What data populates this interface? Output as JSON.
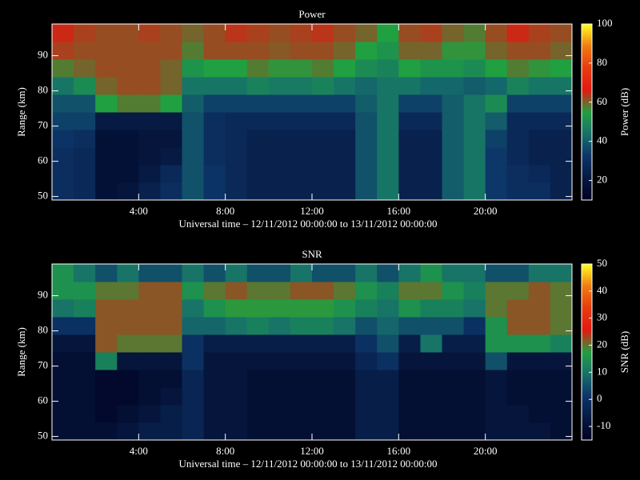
{
  "chart_data": [
    {
      "type": "heatmap",
      "title": "Power",
      "xlabel": "Universal time – 12/11/2012 00:00:00 to 13/11/2012 00:00:00",
      "ylabel": "Range (km)",
      "colorbar_label": "Power (dB)",
      "xlim": [
        0,
        24
      ],
      "ylim": [
        49,
        99
      ],
      "xticks": [
        {
          "value": 4,
          "label": "4:00"
        },
        {
          "value": 8,
          "label": "8:00"
        },
        {
          "value": 12,
          "label": "12:00"
        },
        {
          "value": 16,
          "label": "16:00"
        },
        {
          "value": 20,
          "label": "20:00"
        }
      ],
      "yticks": [
        50,
        60,
        70,
        80,
        90
      ],
      "zlim": [
        10,
        100
      ],
      "zticks": [
        20,
        40,
        60,
        80,
        100
      ],
      "colormap": [
        "#000020",
        "#061840",
        "#0c3468",
        "#16706a",
        "#20a040",
        "#e01a10",
        "#e83a10",
        "#f07a10",
        "#ffff20"
      ],
      "x": [
        0.5,
        1.5,
        2.5,
        3.5,
        4.5,
        5.5,
        6.5,
        7.5,
        8.5,
        9.5,
        10.5,
        11.5,
        12.5,
        13.5,
        14.5,
        15.5,
        16.5,
        17.5,
        18.5,
        19.5,
        20.5,
        21.5,
        22.5,
        23.5
      ],
      "y": [
        51.5,
        56.5,
        61.5,
        66.5,
        71.5,
        76.5,
        81.5,
        86.5,
        91.5,
        96.5
      ],
      "values": [
        [
          30,
          28,
          18,
          20,
          25,
          30,
          38,
          32,
          28,
          25,
          25,
          25,
          25,
          25,
          38,
          45,
          25,
          25,
          40,
          45,
          33,
          30,
          30,
          25
        ],
        [
          30,
          28,
          18,
          18,
          22,
          28,
          38,
          32,
          28,
          25,
          25,
          25,
          25,
          25,
          38,
          45,
          25,
          25,
          40,
          45,
          33,
          30,
          28,
          25
        ],
        [
          30,
          28,
          18,
          18,
          20,
          22,
          38,
          30,
          28,
          25,
          25,
          25,
          25,
          25,
          38,
          45,
          25,
          25,
          40,
          45,
          33,
          28,
          25,
          25
        ],
        [
          32,
          30,
          18,
          18,
          20,
          20,
          38,
          30,
          28,
          25,
          25,
          25,
          25,
          25,
          38,
          45,
          25,
          25,
          40,
          45,
          35,
          28,
          25,
          25
        ],
        [
          35,
          35,
          22,
          22,
          22,
          22,
          38,
          30,
          28,
          28,
          28,
          28,
          28,
          28,
          38,
          45,
          28,
          28,
          40,
          45,
          40,
          28,
          28,
          28
        ],
        [
          38,
          38,
          55,
          58,
          58,
          55,
          40,
          35,
          35,
          35,
          35,
          35,
          35,
          35,
          40,
          45,
          35,
          35,
          40,
          45,
          50,
          35,
          35,
          35
        ],
        [
          45,
          50,
          60,
          62,
          62,
          60,
          45,
          45,
          45,
          48,
          46,
          46,
          48,
          45,
          42,
          45,
          45,
          42,
          42,
          40,
          42,
          48,
          45,
          45
        ],
        [
          58,
          60,
          62,
          62,
          62,
          60,
          52,
          55,
          55,
          58,
          56,
          56,
          58,
          55,
          50,
          48,
          55,
          52,
          52,
          50,
          55,
          58,
          56,
          55
        ],
        [
          63,
          62,
          62,
          62,
          62,
          62,
          58,
          62,
          62,
          62,
          61,
          62,
          62,
          60,
          55,
          52,
          60,
          60,
          56,
          56,
          60,
          62,
          62,
          60
        ],
        [
          65,
          63,
          62,
          62,
          63,
          62,
          60,
          62,
          64,
          63,
          62,
          63,
          64,
          62,
          60,
          55,
          62,
          63,
          60,
          58,
          62,
          65,
          63,
          62
        ]
      ]
    },
    {
      "type": "heatmap",
      "title": "SNR",
      "xlabel": "Universal time – 12/11/2012 00:00:00 to 13/11/2012 00:00:00",
      "ylabel": "Range (km)",
      "colorbar_label": "SNR (dB)",
      "xlim": [
        0,
        24
      ],
      "ylim": [
        49,
        99
      ],
      "xticks": [
        {
          "value": 4,
          "label": "4:00"
        },
        {
          "value": 8,
          "label": "8:00"
        },
        {
          "value": 12,
          "label": "12:00"
        },
        {
          "value": 16,
          "label": "16:00"
        },
        {
          "value": 20,
          "label": "20:00"
        }
      ],
      "yticks": [
        50,
        60,
        70,
        80,
        90
      ],
      "zlim": [
        -15,
        50
      ],
      "zticks": [
        -10,
        0,
        10,
        20,
        30,
        40,
        50
      ],
      "colormap": [
        "#000020",
        "#061840",
        "#0c3468",
        "#16706a",
        "#20a040",
        "#e01a10",
        "#e83a10",
        "#f07a10",
        "#ffff20"
      ],
      "x": [
        0.5,
        1.5,
        2.5,
        3.5,
        4.5,
        5.5,
        6.5,
        7.5,
        8.5,
        9.5,
        10.5,
        11.5,
        12.5,
        13.5,
        14.5,
        15.5,
        16.5,
        17.5,
        18.5,
        19.5,
        20.5,
        21.5,
        22.5,
        23.5
      ],
      "y": [
        51.5,
        56.5,
        61.5,
        66.5,
        71.5,
        76.5,
        81.5,
        86.5,
        91.5,
        96.5
      ],
      "values": [
        [
          -10,
          -10,
          -10,
          -8,
          -5,
          -5,
          -3,
          -8,
          -8,
          -10,
          -10,
          -10,
          -10,
          -10,
          -5,
          -5,
          -10,
          -10,
          -10,
          -10,
          -8,
          -8,
          -8,
          -10
        ],
        [
          -10,
          -10,
          -12,
          -10,
          -8,
          -5,
          -3,
          -8,
          -8,
          -10,
          -10,
          -10,
          -10,
          -10,
          -5,
          -5,
          -10,
          -10,
          -10,
          -10,
          -8,
          -8,
          -10,
          -10
        ],
        [
          -10,
          -10,
          -12,
          -12,
          -10,
          -8,
          -3,
          -8,
          -8,
          -10,
          -10,
          -10,
          -10,
          -10,
          -5,
          -5,
          -10,
          -10,
          -10,
          -10,
          -8,
          -10,
          -10,
          -10
        ],
        [
          -10,
          -10,
          -12,
          -12,
          -10,
          -10,
          -3,
          -8,
          -8,
          -10,
          -10,
          -10,
          -10,
          -10,
          -5,
          -5,
          -10,
          -10,
          -10,
          -10,
          -8,
          -10,
          -10,
          -10
        ],
        [
          -10,
          -10,
          12,
          -8,
          -8,
          -8,
          0,
          -8,
          -8,
          -8,
          -8,
          -8,
          -8,
          -8,
          -3,
          0,
          -8,
          -8,
          -8,
          -8,
          5,
          -8,
          -8,
          -8
        ],
        [
          -8,
          -8,
          22,
          20,
          20,
          20,
          0,
          -5,
          -5,
          -5,
          -5,
          -5,
          -5,
          -5,
          0,
          5,
          -5,
          10,
          -5,
          -5,
          15,
          15,
          15,
          12
        ],
        [
          0,
          0,
          22,
          22,
          22,
          22,
          8,
          8,
          10,
          12,
          10,
          12,
          12,
          10,
          5,
          8,
          5,
          5,
          5,
          0,
          15,
          22,
          22,
          20
        ],
        [
          10,
          12,
          22,
          22,
          22,
          22,
          10,
          15,
          18,
          18,
          18,
          18,
          18,
          15,
          12,
          10,
          15,
          12,
          12,
          10,
          20,
          22,
          22,
          20
        ],
        [
          15,
          15,
          20,
          20,
          22,
          22,
          15,
          20,
          22,
          20,
          20,
          22,
          22,
          20,
          15,
          12,
          20,
          20,
          15,
          12,
          20,
          20,
          22,
          20
        ],
        [
          15,
          10,
          5,
          10,
          5,
          5,
          10,
          5,
          10,
          5,
          5,
          10,
          5,
          5,
          10,
          5,
          10,
          15,
          10,
          10,
          5,
          5,
          10,
          10
        ]
      ]
    }
  ]
}
